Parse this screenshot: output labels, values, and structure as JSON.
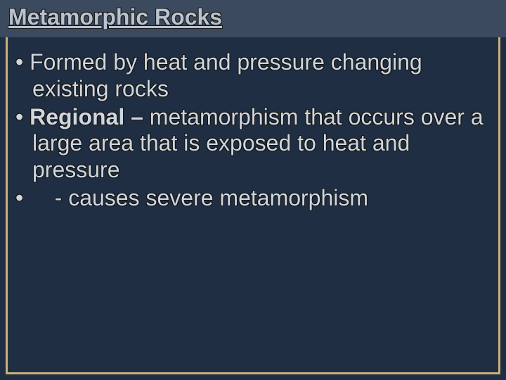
{
  "colors": {
    "slide_bg": "#1f2e42",
    "title_bg": "#3b4a5e",
    "border_color": "#c9b178",
    "title_text": "#b9c2cd",
    "title_outline": "#1a1a1a",
    "body_text": "#cfd6dd",
    "body_outline": "#141414"
  },
  "title": "Metamorphic Rocks",
  "bullets": [
    {
      "prefix": "• ",
      "lead": "",
      "bold": "",
      "text": "Formed by heat and pressure changing existing rocks"
    },
    {
      "prefix": "• ",
      "lead": "",
      "bold": "Regional – ",
      "text": "metamorphism that occurs over a large area that is exposed to heat and pressure"
    },
    {
      "prefix": "•     ",
      "lead": "",
      "bold": "",
      "text": "- causes severe metamorphism"
    }
  ],
  "typography": {
    "title_fontsize": 32,
    "title_fontweight": "bold",
    "body_fontsize": 32,
    "body_lineheight": 1.18
  }
}
